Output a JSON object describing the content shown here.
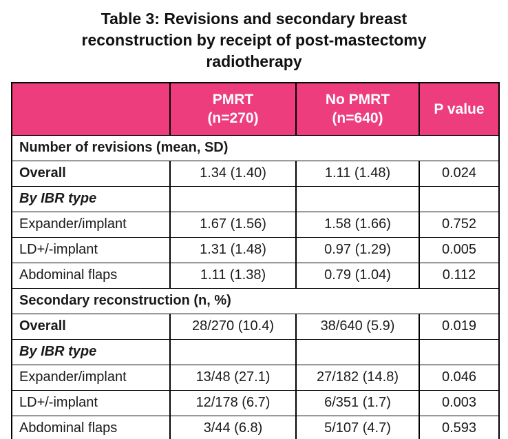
{
  "title": "Table 3: Revisions and secondary breast\nreconstruction by receipt of post-mastectomy\nradiotherapy",
  "colors": {
    "header_bg": "#ee3d7c",
    "header_text": "#ffffff",
    "border": "#000000",
    "body_text": "#1a1a1a",
    "page_bg": "#ffffff"
  },
  "table": {
    "header": {
      "label_col": "",
      "pmrt_col": "PMRT\n(n=270)",
      "no_pmrt_col": "No PMRT\n(n=640)",
      "p_value_col": "P value"
    },
    "sections": [
      {
        "heading": "Number of revisions (mean, SD)"
      },
      {
        "heading": "Secondary reconstruction (n, %)"
      }
    ],
    "rows": [
      {
        "type": "section",
        "label": "Number of revisions (mean, SD)",
        "pmrt": "",
        "no_pmrt": "",
        "p": ""
      },
      {
        "type": "bold",
        "label": "Overall",
        "pmrt": "1.34 (1.40)",
        "no_pmrt": "1.11 (1.48)",
        "p": "0.024"
      },
      {
        "type": "italic",
        "label": "By IBR type",
        "pmrt": "",
        "no_pmrt": "",
        "p": ""
      },
      {
        "type": "normal",
        "label": "Expander/implant",
        "pmrt": "1.67 (1.56)",
        "no_pmrt": "1.58 (1.66)",
        "p": "0.752"
      },
      {
        "type": "normal",
        "label": "LD+/-implant",
        "pmrt": "1.31 (1.48)",
        "no_pmrt": "0.97 (1.29)",
        "p": "0.005"
      },
      {
        "type": "normal",
        "label": "Abdominal flaps",
        "pmrt": "1.11 (1.38)",
        "no_pmrt": "0.79 (1.04)",
        "p": "0.112"
      },
      {
        "type": "section",
        "label": "Secondary reconstruction (n, %)",
        "pmrt": "",
        "no_pmrt": "",
        "p": ""
      },
      {
        "type": "bold",
        "label": "Overall",
        "pmrt": "28/270 (10.4)",
        "no_pmrt": "38/640 (5.9)",
        "p": "0.019"
      },
      {
        "type": "italic",
        "label": "By IBR type",
        "pmrt": "",
        "no_pmrt": "",
        "p": ""
      },
      {
        "type": "normal",
        "label": "Expander/implant",
        "pmrt": "13/48 (27.1)",
        "no_pmrt": "27/182 (14.8)",
        "p": "0.046"
      },
      {
        "type": "normal",
        "label": "LD+/-implant",
        "pmrt": "12/178 (6.7)",
        "no_pmrt": "6/351 (1.7)",
        "p": "0.003"
      },
      {
        "type": "normal",
        "label": "Abdominal flaps",
        "pmrt": "3/44 (6.8)",
        "no_pmrt": "5/107 (4.7)",
        "p": "0.593"
      }
    ]
  }
}
